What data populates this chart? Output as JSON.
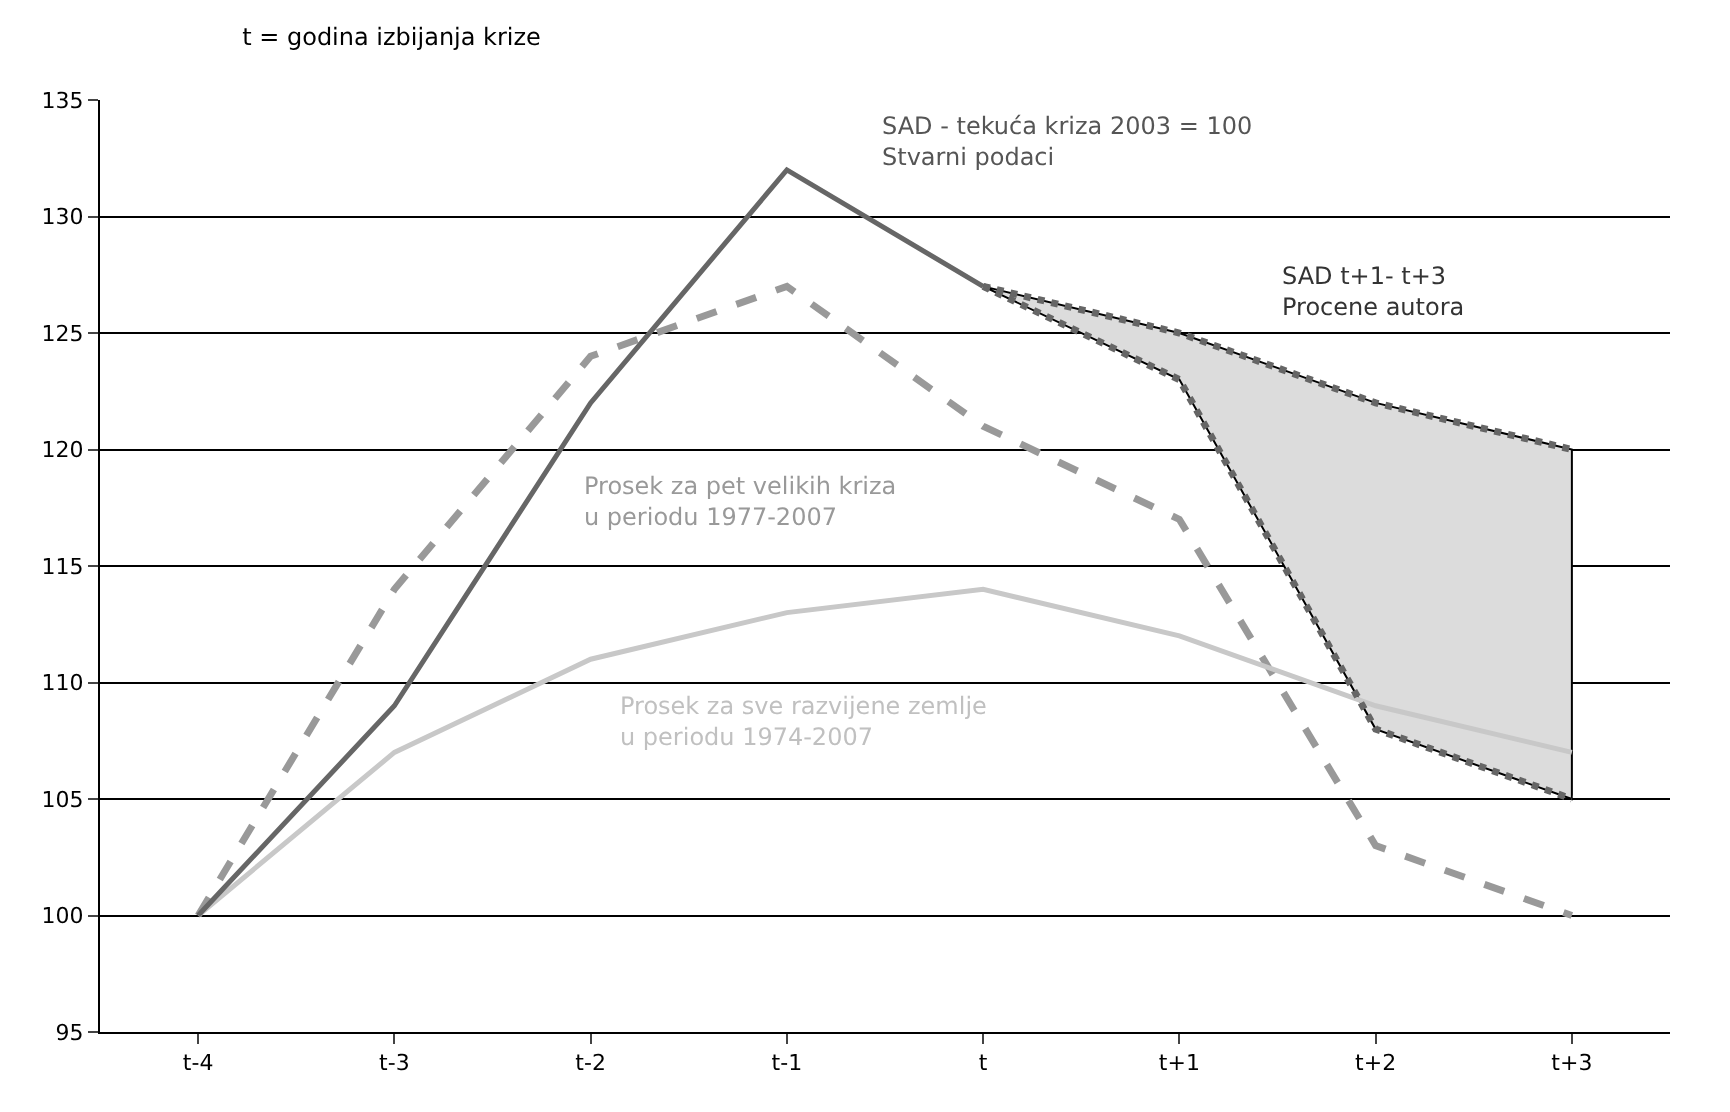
{
  "chart_data": {
    "type": "line",
    "title": "t = godina izbijanja krize",
    "categories": [
      "t-4",
      "t-3",
      "t-2",
      "t-1",
      "t",
      "t+1",
      "t+2",
      "t+3"
    ],
    "series": [
      {
        "color": "#999999",
        "line_style": "dashed",
        "values": [
          100,
          114,
          124,
          127,
          121,
          117,
          103,
          100
        ]
      },
      {
        "color": "#c8c8c8",
        "line_style": "solid",
        "values": [
          100,
          107,
          111,
          113,
          114,
          112,
          109,
          107
        ]
      },
      {
        "color": "#666666",
        "line_style": "solid",
        "values": [
          100,
          109,
          122,
          132,
          127,
          null,
          null,
          null
        ]
      },
      {
        "color": "#666666",
        "line_style": "dotted",
        "values": [
          null,
          null,
          null,
          null,
          127,
          125,
          122,
          120
        ],
        "lower": [
          null,
          null,
          null,
          null,
          127,
          123,
          108,
          105
        ],
        "upper": [
          null,
          null,
          null,
          null,
          127,
          125,
          122,
          120
        ]
      },
      {
        "color": "#666666",
        "line_style": "dotted",
        "values": [
          null,
          null,
          null,
          null,
          127,
          123,
          108,
          105
        ]
      }
    ],
    "ylim": [
      95,
      135
    ],
    "yticks": [
      95,
      100,
      105,
      110,
      115,
      120,
      125,
      130,
      135
    ],
    "grid": "y",
    "marker": "none",
    "annotations": [
      "SAD - tekuća kriza 2003 = 100\nStvarni podaci",
      "SAD t+1- t+3\nProcene autora",
      "Prosek za pet velikih kriza\nu periodu 1977-2007",
      "Prosek za sve razvijene zemlje\nu periodu 1974-2007"
    ]
  }
}
